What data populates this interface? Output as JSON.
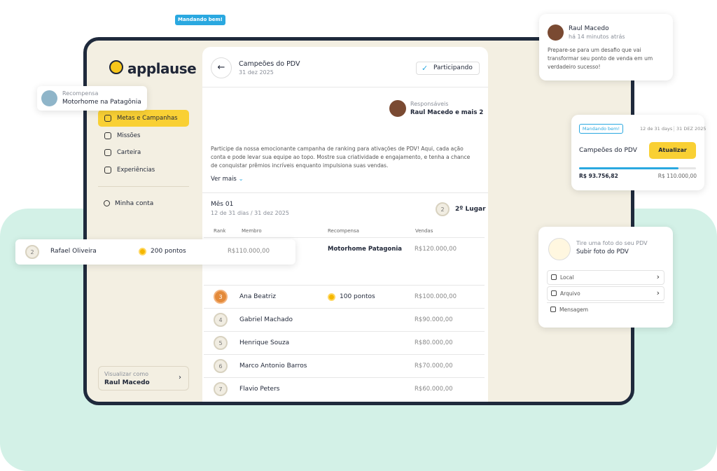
{
  "floating_badge": "Mandando bem!",
  "sidebar": {
    "logo": "applause",
    "nav": [
      "Metas e Campanhas",
      "Missões",
      "Carteira",
      "Experiências"
    ],
    "account": "Minha conta",
    "view_as": {
      "label": "Visualizar como",
      "name": "Raul Macedo"
    }
  },
  "reward_card": {
    "label": "Recompensa",
    "title": "Motorhome na Patagônia"
  },
  "header": {
    "title": "Campeões do PDV",
    "date": "31 dez 2025",
    "status": "Participando"
  },
  "responsible": {
    "label": "Responsáveis",
    "names": "Raul Macedo e mais 2"
  },
  "description": "Participe da nossa emocionante campanha de ranking para ativações de PDV! Aqui, cada ação conta e pode levar sua equipe ao topo. Mostre sua criatividade e engajamento, e tenha a chance de conquistar prêmios incríveis enquanto impulsiona suas vendas.",
  "see_more": "Ver mais",
  "period": {
    "title": "Mês 01",
    "days": "12 de 31 dias",
    "separator": "/",
    "end": "31 dez 2025",
    "rank": "2",
    "place": "2º Lugar"
  },
  "table": {
    "columns": [
      "Rank",
      "Membro",
      "Recompensa",
      "Vendas"
    ],
    "rows": [
      {
        "reward": "Motorhome Patagonia",
        "sales": "R$120.000,00"
      },
      {
        "rank": "3",
        "member": "Ana Beatriz",
        "reward": "100 pontos",
        "sales": "R$100.000,00"
      },
      {
        "rank": "4",
        "member": "Gabriel Machado",
        "sales": "R$90.000,00"
      },
      {
        "rank": "5",
        "member": "Henrique Souza",
        "sales": "R$80.000,00"
      },
      {
        "rank": "6",
        "member": "Marco Antonio Barros",
        "sales": "R$70.000,00"
      },
      {
        "rank": "7",
        "member": "Flavio Peters",
        "sales": "R$60.000,00"
      }
    ]
  },
  "highlight_row": {
    "rank": "2",
    "member": "Rafael Oliveira",
    "reward": "200 pontos",
    "sales": "R$110.000,00"
  },
  "notification": {
    "name": "Raul Macedo",
    "time": "há 14 minutos atrás",
    "message": "Prepare-se para um desafio que vai transformar seu ponto de venda em um verdadeiro sucesso!"
  },
  "campaign_card": {
    "badge": "Mandando bem!",
    "days": "12 de 31 days",
    "end": "31 DEZ 2025",
    "title": "Campeões do PDV",
    "button": "Atualizar",
    "progress": {
      "value": 93756.82,
      "label": "R$ 93.756,82"
    },
    "target": {
      "value": 110000,
      "label": "R$ 110.000,00"
    }
  },
  "photo_card": {
    "hint": "Tire uma foto do seu PDV",
    "title": "Subir foto do PDV",
    "options": [
      "Local",
      "Arquivo",
      "Mensagem"
    ]
  }
}
